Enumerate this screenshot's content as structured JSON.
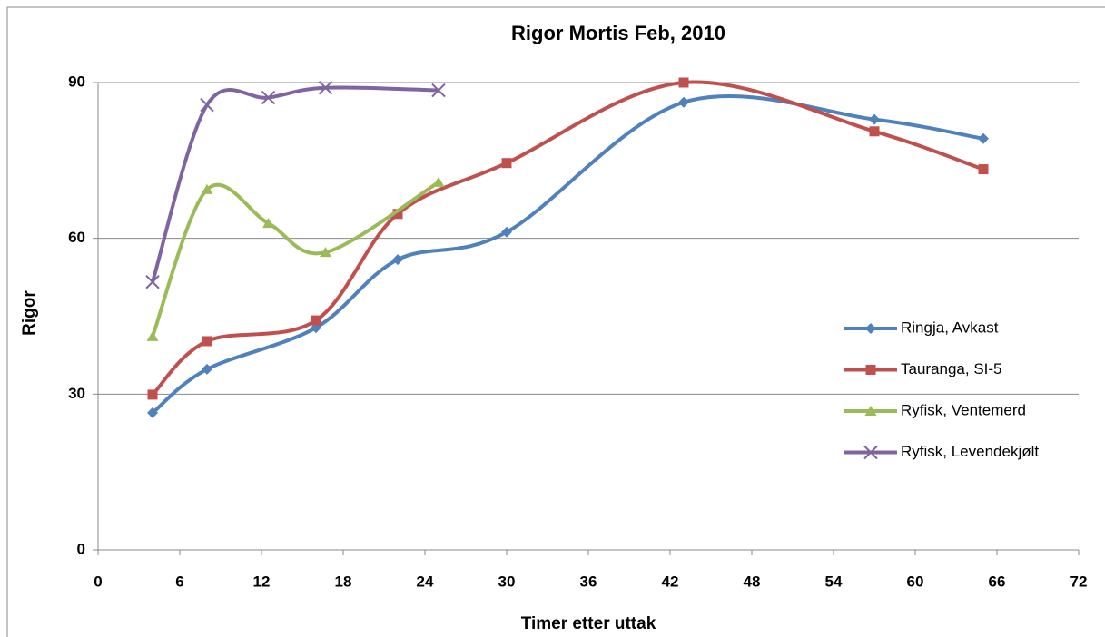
{
  "chart_data": {
    "type": "line",
    "title": "Rigor Mortis Feb, 2010",
    "xlabel": "Timer etter uttak",
    "ylabel": "Rigor",
    "xlim": [
      0,
      72
    ],
    "xticks": [
      0,
      6,
      12,
      18,
      24,
      30,
      36,
      42,
      48,
      54,
      60,
      66,
      72
    ],
    "ylim": [
      0,
      90
    ],
    "yticks": [
      0,
      30,
      60,
      90
    ],
    "grid": true,
    "smooth": true,
    "legend": "right",
    "series": [
      {
        "name": "Ringja, Avkast",
        "color": "#4f81bd",
        "marker": "diamond",
        "x": [
          4,
          8,
          16,
          22,
          30,
          43,
          57,
          65
        ],
        "values": [
          26.4,
          34.8,
          42.8,
          55.9,
          61.2,
          86.2,
          82.9,
          79.2
        ]
      },
      {
        "name": "Tauranga, SI-5",
        "color": "#c0504d",
        "marker": "square",
        "x": [
          4,
          8,
          16,
          22,
          30,
          43,
          57,
          65
        ],
        "values": [
          29.9,
          40.2,
          44.2,
          64.7,
          74.5,
          90,
          80.6,
          73.3
        ]
      },
      {
        "name": "Ryfisk, Ventemerd",
        "color": "#9bbb59",
        "marker": "triangle",
        "x": [
          4,
          8,
          12.5,
          16.7,
          25
        ],
        "values": [
          41.1,
          69.4,
          62.9,
          57.3,
          70.8
        ]
      },
      {
        "name": "Ryfisk, Levendekjølt",
        "color": "#8064a2",
        "marker": "x",
        "x": [
          4,
          8,
          12.5,
          16.7,
          25
        ],
        "values": [
          51.6,
          85.7,
          87.1,
          89,
          88.5
        ]
      }
    ]
  }
}
